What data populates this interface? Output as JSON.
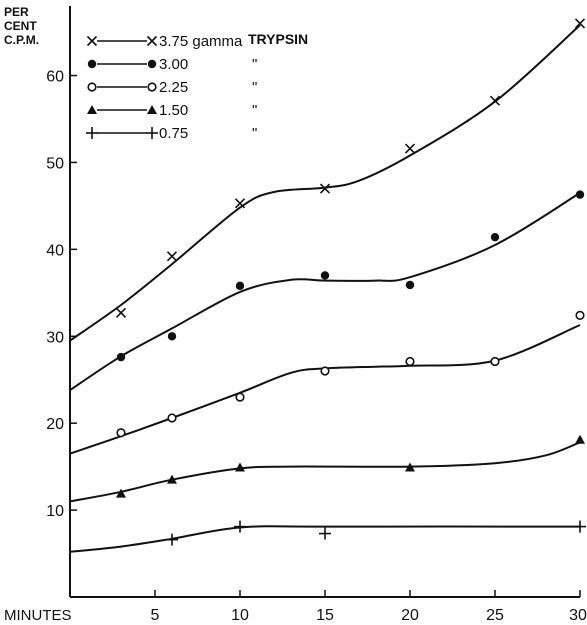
{
  "chart_data": {
    "type": "line",
    "title": "TRYPSIN",
    "ylabel_lines": [
      "PER",
      "CENT",
      "C.P.M."
    ],
    "xlabel": "MINUTES",
    "xlim": [
      0,
      30
    ],
    "ylim": [
      0,
      68
    ],
    "xticks": [
      5,
      10,
      15,
      20,
      25,
      30
    ],
    "yticks": [
      10,
      20,
      30,
      40,
      50,
      60
    ],
    "legend_placement": "top-left",
    "grid": false,
    "series": [
      {
        "name": "3.75 gamma",
        "legend_label": "3.75 gamma",
        "marker": "x",
        "points": [
          [
            3,
            32.7
          ],
          [
            6,
            39.2
          ],
          [
            10,
            45.3
          ],
          [
            15,
            47.0
          ],
          [
            20,
            51.6
          ],
          [
            25,
            57.1
          ],
          [
            30,
            66.0
          ]
        ],
        "curve": [
          [
            0,
            29.5
          ],
          [
            3,
            33.6
          ],
          [
            6,
            38.3
          ],
          [
            10,
            44.8
          ],
          [
            12,
            46.6
          ],
          [
            15,
            47.1
          ],
          [
            17,
            47.9
          ],
          [
            20,
            50.8
          ],
          [
            25,
            57.0
          ],
          [
            30,
            65.8
          ]
        ]
      },
      {
        "name": "3.00",
        "legend_label": "3.00",
        "marker": "filled-circle",
        "points": [
          [
            3,
            27.6
          ],
          [
            6,
            30.0
          ],
          [
            10,
            35.8
          ],
          [
            15,
            37.0
          ],
          [
            20,
            35.9
          ],
          [
            25,
            41.4
          ],
          [
            30,
            46.3
          ]
        ],
        "curve": [
          [
            0,
            23.8
          ],
          [
            3,
            27.7
          ],
          [
            6,
            30.9
          ],
          [
            10,
            35.1
          ],
          [
            13,
            36.5
          ],
          [
            15,
            36.4
          ],
          [
            18,
            36.4
          ],
          [
            20,
            36.8
          ],
          [
            25,
            40.5
          ],
          [
            30,
            46.5
          ]
        ]
      },
      {
        "name": "2.25",
        "legend_label": "2.25",
        "marker": "open-circle",
        "points": [
          [
            3,
            18.9
          ],
          [
            6,
            20.6
          ],
          [
            10,
            23.0
          ],
          [
            15,
            26.0
          ],
          [
            20,
            27.1
          ],
          [
            25,
            27.1
          ],
          [
            30,
            32.4
          ]
        ],
        "curve": [
          [
            0,
            16.5
          ],
          [
            3,
            18.5
          ],
          [
            6,
            20.6
          ],
          [
            10,
            23.5
          ],
          [
            13,
            25.8
          ],
          [
            15,
            26.3
          ],
          [
            18,
            26.5
          ],
          [
            20,
            26.6
          ],
          [
            25,
            27.2
          ],
          [
            30,
            31.3
          ]
        ]
      },
      {
        "name": "1.50",
        "legend_label": "1.50",
        "marker": "triangle",
        "points": [
          [
            3,
            11.9
          ],
          [
            6,
            13.5
          ],
          [
            10,
            14.9
          ],
          [
            20,
            14.9
          ],
          [
            30,
            18.1
          ]
        ],
        "curve": [
          [
            0,
            11.0
          ],
          [
            3,
            12.1
          ],
          [
            6,
            13.5
          ],
          [
            10,
            14.8
          ],
          [
            13,
            15.0
          ],
          [
            20,
            15.0
          ],
          [
            25,
            15.4
          ],
          [
            28,
            16.3
          ],
          [
            30,
            17.8
          ]
        ]
      },
      {
        "name": "0.75",
        "legend_label": "0.75",
        "marker": "plus",
        "points": [
          [
            6,
            6.6
          ],
          [
            10,
            8.1
          ],
          [
            15,
            7.3
          ],
          [
            30,
            8.1
          ]
        ],
        "curve": [
          [
            0,
            5.2
          ],
          [
            3,
            5.8
          ],
          [
            6,
            6.7
          ],
          [
            10,
            8.0
          ],
          [
            15,
            8.1
          ],
          [
            30,
            8.1
          ]
        ]
      }
    ],
    "legend_dittos": [
      "\"",
      "\"",
      "\"",
      "\""
    ]
  }
}
